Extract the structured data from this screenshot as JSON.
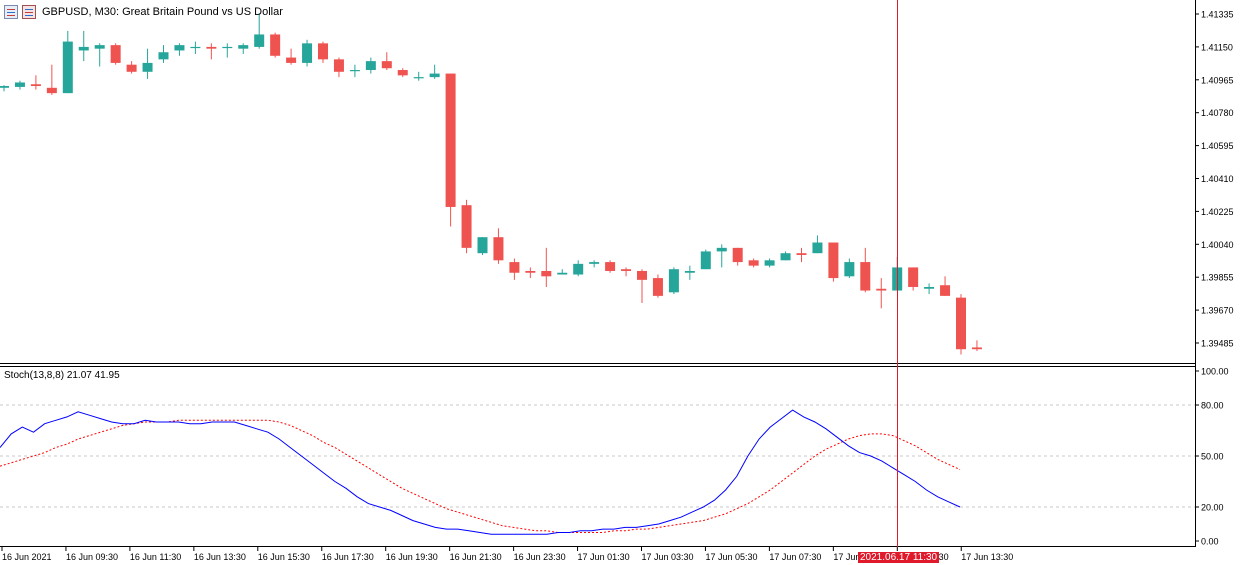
{
  "window": {
    "title": "GBPUSD, M30:  Great Britain Pound vs US Dollar",
    "icons": [
      "chart-window-icon",
      "trade-panel-icon"
    ]
  },
  "price_axis": {
    "labels": [
      "1.41335",
      "1.41150",
      "1.40965",
      "1.40780",
      "1.40595",
      "1.40410",
      "1.40225",
      "1.40040",
      "1.39855",
      "1.39670",
      "1.39485"
    ]
  },
  "indicator": {
    "label": "Stoch(13,8,8) 21.07 41.95",
    "levels": [
      "100.00",
      "80.00",
      "50.00",
      "20.00",
      "0.00"
    ]
  },
  "time_axis": {
    "labels": [
      "16 Jun 2021",
      "16 Jun 09:30",
      "16 Jun 11:30",
      "16 Jun 13:30",
      "16 Jun 15:30",
      "16 Jun 17:30",
      "16 Jun 19:30",
      "16 Jun 21:30",
      "16 Jun 23:30",
      "17 Jun 01:30",
      "17 Jun 03:30",
      "17 Jun 05:30",
      "17 Jun 07:30",
      "17 Jun 09:30",
      "17 Jun 11:30",
      "17 Jun 13:30"
    ]
  },
  "crosshair": {
    "time_label": "2021.06.17 11:30"
  },
  "colors": {
    "bull": "#26a69a",
    "bear": "#ef5350",
    "main_line": "#0000ff",
    "signal_line": "#ff0000",
    "crosshair": "#e0192b",
    "grid": "#c8c8c8"
  },
  "chart_data": [
    {
      "type": "candlestick",
      "symbol": "GBPUSD",
      "timeframe": "M30",
      "ylim": [
        1.3938,
        1.4143
      ],
      "candles": [
        {
          "o": 1.4092,
          "h": 1.40935,
          "l": 1.409,
          "c": 1.4093
        },
        {
          "o": 1.40925,
          "h": 1.4096,
          "l": 1.4091,
          "c": 1.4095
        },
        {
          "o": 1.4094,
          "h": 1.4099,
          "l": 1.4091,
          "c": 1.4093
        },
        {
          "o": 1.4092,
          "h": 1.4105,
          "l": 1.4088,
          "c": 1.4089
        },
        {
          "o": 1.4089,
          "h": 1.4124,
          "l": 1.4089,
          "c": 1.4118
        },
        {
          "o": 1.4113,
          "h": 1.4124,
          "l": 1.4107,
          "c": 1.4115
        },
        {
          "o": 1.4114,
          "h": 1.4117,
          "l": 1.4104,
          "c": 1.4116
        },
        {
          "o": 1.4116,
          "h": 1.4117,
          "l": 1.4105,
          "c": 1.4106
        },
        {
          "o": 1.4105,
          "h": 1.4107,
          "l": 1.41,
          "c": 1.4101
        },
        {
          "o": 1.4101,
          "h": 1.4114,
          "l": 1.4097,
          "c": 1.4106
        },
        {
          "o": 1.4108,
          "h": 1.4116,
          "l": 1.4106,
          "c": 1.4112
        },
        {
          "o": 1.4113,
          "h": 1.4117,
          "l": 1.411,
          "c": 1.4116
        },
        {
          "o": 1.4115,
          "h": 1.4118,
          "l": 1.4111,
          "c": 1.4115
        },
        {
          "o": 1.4115,
          "h": 1.4117,
          "l": 1.4108,
          "c": 1.4114
        },
        {
          "o": 1.4115,
          "h": 1.4117,
          "l": 1.4109,
          "c": 1.4115
        },
        {
          "o": 1.4114,
          "h": 1.4117,
          "l": 1.4111,
          "c": 1.4116
        },
        {
          "o": 1.4115,
          "h": 1.4134,
          "l": 1.4114,
          "c": 1.4122
        },
        {
          "o": 1.4122,
          "h": 1.4123,
          "l": 1.4109,
          "c": 1.411
        },
        {
          "o": 1.4109,
          "h": 1.4114,
          "l": 1.4105,
          "c": 1.4106
        },
        {
          "o": 1.4106,
          "h": 1.4119,
          "l": 1.4104,
          "c": 1.4117
        },
        {
          "o": 1.4117,
          "h": 1.4118,
          "l": 1.4106,
          "c": 1.4108
        },
        {
          "o": 1.4108,
          "h": 1.4109,
          "l": 1.4098,
          "c": 1.4101
        },
        {
          "o": 1.4102,
          "h": 1.4105,
          "l": 1.4098,
          "c": 1.4102
        },
        {
          "o": 1.4102,
          "h": 1.4109,
          "l": 1.41,
          "c": 1.4107
        },
        {
          "o": 1.4107,
          "h": 1.4112,
          "l": 1.4102,
          "c": 1.4103
        },
        {
          "o": 1.4102,
          "h": 1.4103,
          "l": 1.4098,
          "c": 1.4099
        },
        {
          "o": 1.4098,
          "h": 1.4101,
          "l": 1.4096,
          "c": 1.4098
        },
        {
          "o": 1.4098,
          "h": 1.4105,
          "l": 1.4097,
          "c": 1.41
        },
        {
          "o": 1.41,
          "h": 1.41,
          "l": 1.4014,
          "c": 1.4025
        },
        {
          "o": 1.4026,
          "h": 1.4029,
          "l": 1.3999,
          "c": 1.4002
        },
        {
          "o": 1.3999,
          "h": 1.4008,
          "l": 1.3998,
          "c": 1.4008
        },
        {
          "o": 1.4008,
          "h": 1.4013,
          "l": 1.3993,
          "c": 1.3995
        },
        {
          "o": 1.3994,
          "h": 1.3996,
          "l": 1.3984,
          "c": 1.3988
        },
        {
          "o": 1.3989,
          "h": 1.3991,
          "l": 1.3985,
          "c": 1.3988
        },
        {
          "o": 1.3989,
          "h": 1.4002,
          "l": 1.398,
          "c": 1.3986
        },
        {
          "o": 1.3987,
          "h": 1.399,
          "l": 1.3987,
          "c": 1.3988
        },
        {
          "o": 1.3987,
          "h": 1.3995,
          "l": 1.3986,
          "c": 1.3993
        },
        {
          "o": 1.3993,
          "h": 1.3995,
          "l": 1.3991,
          "c": 1.3994
        },
        {
          "o": 1.3994,
          "h": 1.3995,
          "l": 1.3988,
          "c": 1.3989
        },
        {
          "o": 1.399,
          "h": 1.3991,
          "l": 1.3986,
          "c": 1.3989
        },
        {
          "o": 1.3989,
          "h": 1.399,
          "l": 1.3971,
          "c": 1.3984
        },
        {
          "o": 1.3985,
          "h": 1.3987,
          "l": 1.3974,
          "c": 1.3975
        },
        {
          "o": 1.3977,
          "h": 1.3991,
          "l": 1.3976,
          "c": 1.399
        },
        {
          "o": 1.3988,
          "h": 1.3992,
          "l": 1.3984,
          "c": 1.3989
        },
        {
          "o": 1.399,
          "h": 1.4001,
          "l": 1.399,
          "c": 1.4
        },
        {
          "o": 1.4,
          "h": 1.4004,
          "l": 1.3991,
          "c": 1.4002
        },
        {
          "o": 1.4002,
          "h": 1.4002,
          "l": 1.3992,
          "c": 1.3994
        },
        {
          "o": 1.3995,
          "h": 1.3996,
          "l": 1.3991,
          "c": 1.3992
        },
        {
          "o": 1.3992,
          "h": 1.3996,
          "l": 1.3991,
          "c": 1.3995
        },
        {
          "o": 1.3995,
          "h": 1.4,
          "l": 1.3995,
          "c": 1.3999
        },
        {
          "o": 1.3999,
          "h": 1.4002,
          "l": 1.3994,
          "c": 1.3998
        },
        {
          "o": 1.3999,
          "h": 1.4009,
          "l": 1.3999,
          "c": 1.4005
        },
        {
          "o": 1.4005,
          "h": 1.4005,
          "l": 1.3983,
          "c": 1.3985
        },
        {
          "o": 1.3986,
          "h": 1.3996,
          "l": 1.3985,
          "c": 1.3994
        },
        {
          "o": 1.3994,
          "h": 1.4002,
          "l": 1.3977,
          "c": 1.3978
        },
        {
          "o": 1.3979,
          "h": 1.3985,
          "l": 1.3968,
          "c": 1.3978
        },
        {
          "o": 1.3978,
          "h": 1.3997,
          "l": 1.3978,
          "c": 1.3991
        },
        {
          "o": 1.3991,
          "h": 1.3991,
          "l": 1.3978,
          "c": 1.398
        },
        {
          "o": 1.3979,
          "h": 1.3982,
          "l": 1.3976,
          "c": 1.398
        },
        {
          "o": 1.3981,
          "h": 1.3986,
          "l": 1.3975,
          "c": 1.3975
        },
        {
          "o": 1.3974,
          "h": 1.3976,
          "l": 1.3942,
          "c": 1.3945
        },
        {
          "o": 1.3946,
          "h": 1.395,
          "l": 1.3944,
          "c": 1.3945
        }
      ]
    },
    {
      "type": "line",
      "title": "Stoch(13,8,8) 21.07 41.95",
      "ylim": [
        0,
        100
      ],
      "series": [
        {
          "values": [
            55,
            63,
            67,
            64,
            69,
            71,
            73,
            76,
            74,
            72,
            70,
            69,
            69,
            71,
            70,
            70,
            70,
            69,
            69,
            70,
            70,
            70,
            68,
            66,
            64,
            60,
            55,
            50,
            45,
            40,
            35,
            31,
            26,
            22,
            20,
            18,
            15,
            12,
            10,
            8,
            7,
            7,
            6,
            5,
            4,
            4,
            4,
            4,
            4,
            4,
            5,
            5,
            6,
            6,
            7,
            7,
            8,
            8,
            9,
            10,
            12,
            14,
            17,
            20,
            24,
            30,
            38,
            50,
            60,
            67,
            72,
            77,
            73,
            70,
            66,
            61,
            56,
            52,
            50,
            47,
            43,
            39,
            35,
            30,
            26,
            23,
            20
          ]
        },
        {
          "values": [
            44,
            46,
            48,
            50,
            52,
            55,
            57,
            60,
            62,
            64,
            66,
            68,
            69,
            70,
            70,
            70,
            71,
            71,
            71,
            71,
            71,
            71,
            71,
            71,
            71,
            70,
            68,
            65,
            62,
            58,
            55,
            51,
            47,
            43,
            39,
            35,
            31,
            28,
            25,
            22,
            19,
            17,
            15,
            13,
            11,
            9,
            8,
            7,
            6,
            6,
            5,
            5,
            5,
            5,
            5,
            6,
            6,
            7,
            7,
            8,
            9,
            10,
            11,
            12,
            14,
            16,
            19,
            22,
            26,
            30,
            35,
            40,
            45,
            50,
            54,
            57,
            60,
            62,
            63,
            63,
            62,
            59,
            56,
            52,
            48,
            45,
            42
          ]
        }
      ],
      "levels": [
        20,
        50,
        80
      ]
    }
  ]
}
